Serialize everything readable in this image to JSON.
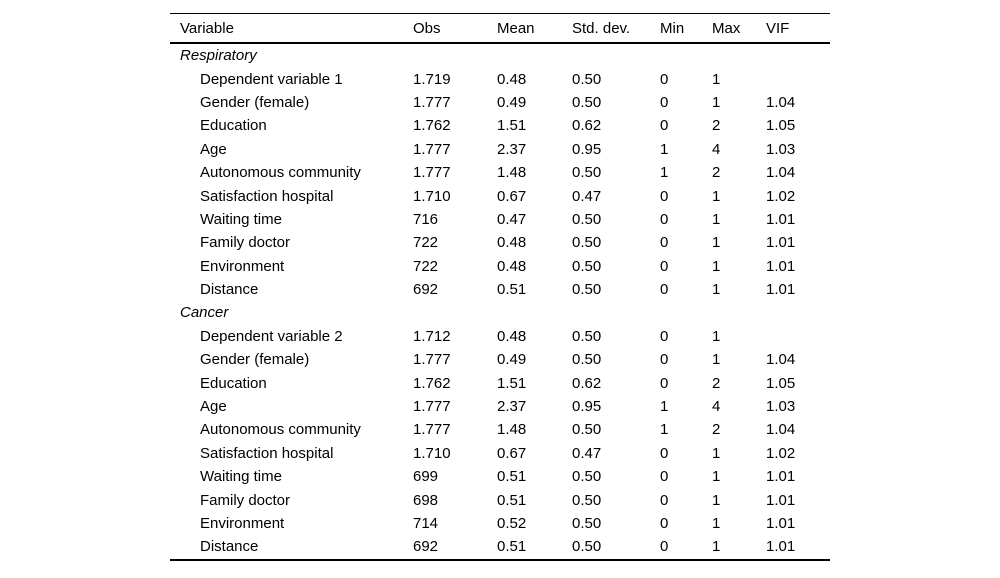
{
  "page": {
    "background_color": "#ffffff",
    "text_color": "#000000",
    "rule_color": "#000000"
  },
  "table": {
    "columns": [
      "Variable",
      "Obs",
      "Mean",
      "Std. dev.",
      "Min",
      "Max",
      "VIF"
    ],
    "sections": [
      {
        "label": "Respiratory",
        "rows": [
          [
            "Dependent variable 1",
            "1.719",
            "0.48",
            "0.50",
            "0",
            "1",
            ""
          ],
          [
            "Gender (female)",
            "1.777",
            "0.49",
            "0.50",
            "0",
            "1",
            "1.04"
          ],
          [
            "Education",
            "1.762",
            "1.51",
            "0.62",
            "0",
            "2",
            "1.05"
          ],
          [
            "Age",
            "1.777",
            "2.37",
            "0.95",
            "1",
            "4",
            "1.03"
          ],
          [
            "Autonomous community",
            "1.777",
            "1.48",
            "0.50",
            "1",
            "2",
            "1.04"
          ],
          [
            "Satisfaction hospital",
            "1.710",
            "0.67",
            "0.47",
            "0",
            "1",
            "1.02"
          ],
          [
            "Waiting time",
            "716",
            "0.47",
            "0.50",
            "0",
            "1",
            "1.01"
          ],
          [
            "Family doctor",
            "722",
            "0.48",
            "0.50",
            "0",
            "1",
            "1.01"
          ],
          [
            "Environment",
            "722",
            "0.48",
            "0.50",
            "0",
            "1",
            "1.01"
          ],
          [
            "Distance",
            "692",
            "0.51",
            "0.50",
            "0",
            "1",
            "1.01"
          ]
        ]
      },
      {
        "label": "Cancer",
        "rows": [
          [
            "Dependent variable 2",
            "1.712",
            "0.48",
            "0.50",
            "0",
            "1",
            ""
          ],
          [
            "Gender (female)",
            "1.777",
            "0.49",
            "0.50",
            "0",
            "1",
            "1.04"
          ],
          [
            "Education",
            "1.762",
            "1.51",
            "0.62",
            "0",
            "2",
            "1.05"
          ],
          [
            "Age",
            "1.777",
            "2.37",
            "0.95",
            "1",
            "4",
            "1.03"
          ],
          [
            "Autonomous community",
            "1.777",
            "1.48",
            "0.50",
            "1",
            "2",
            "1.04"
          ],
          [
            "Satisfaction hospital",
            "1.710",
            "0.67",
            "0.47",
            "0",
            "1",
            "1.02"
          ],
          [
            "Waiting time",
            "699",
            "0.51",
            "0.50",
            "0",
            "1",
            "1.01"
          ],
          [
            "Family doctor",
            "698",
            "0.51",
            "0.50",
            "0",
            "1",
            "1.01"
          ],
          [
            "Environment",
            "714",
            "0.52",
            "0.50",
            "0",
            "1",
            "1.01"
          ],
          [
            "Distance",
            "692",
            "0.51",
            "0.50",
            "0",
            "1",
            "1.01"
          ]
        ]
      }
    ]
  }
}
